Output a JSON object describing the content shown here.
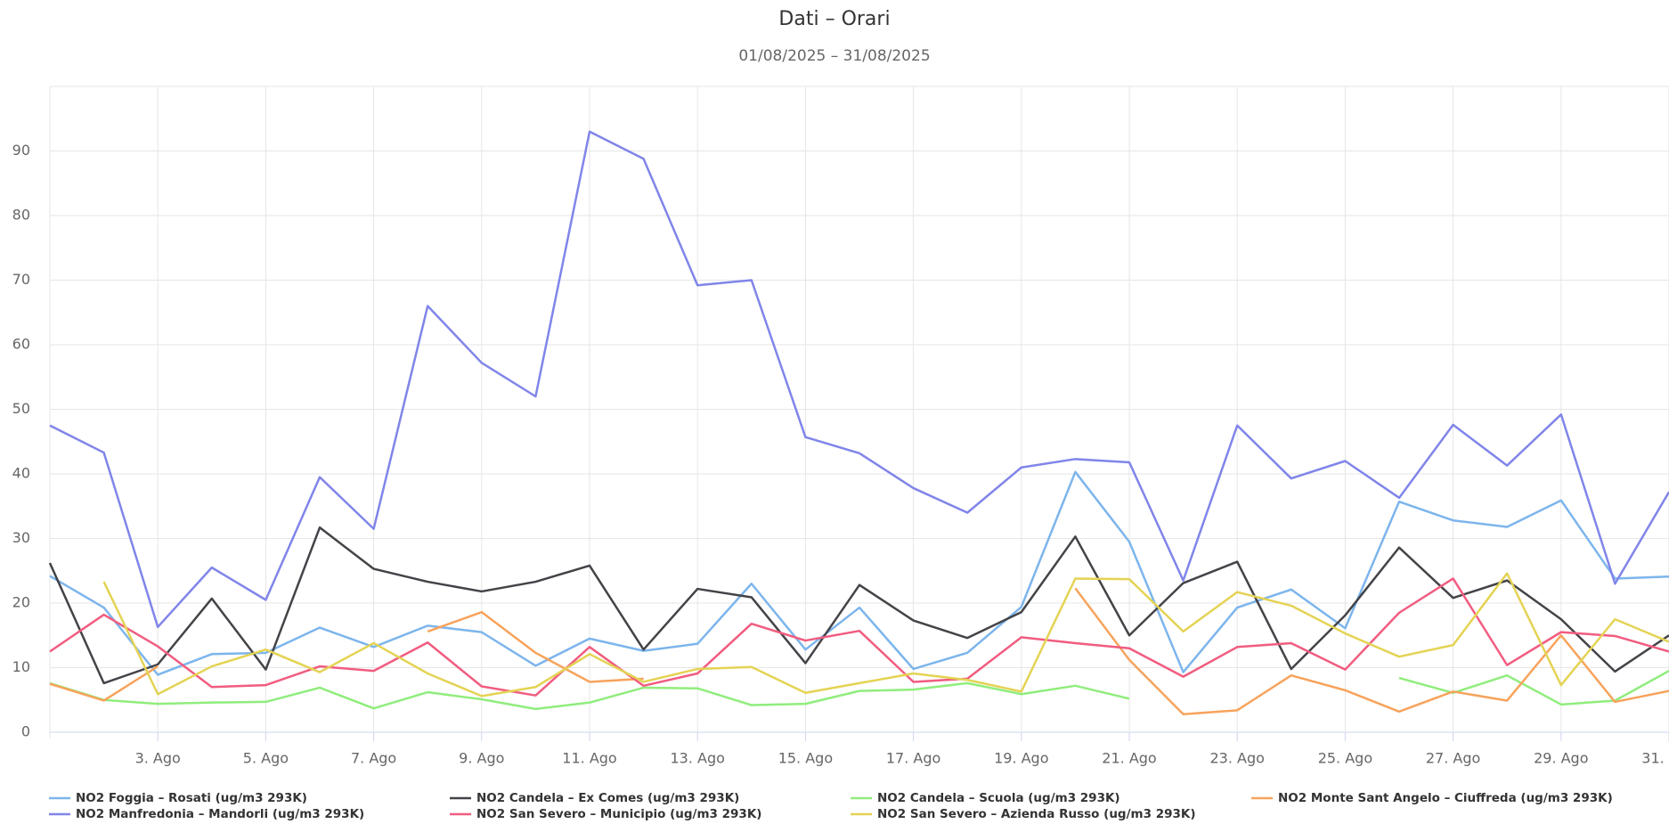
{
  "chart_data": {
    "type": "line",
    "title": "Dati – Orari",
    "subtitle": "01/08/2025 – 31/08/2025",
    "x": [
      1,
      2,
      3,
      4,
      5,
      6,
      7,
      8,
      9,
      10,
      11,
      12,
      13,
      14,
      15,
      16,
      17,
      18,
      19,
      20,
      21,
      22,
      23,
      24,
      25,
      26,
      27,
      28,
      29,
      30,
      31
    ],
    "xlim": [
      1,
      31
    ],
    "xticks": [
      {
        "value": 3,
        "label": "3. Ago"
      },
      {
        "value": 5,
        "label": "5. Ago"
      },
      {
        "value": 7,
        "label": "7. Ago"
      },
      {
        "value": 9,
        "label": "9. Ago"
      },
      {
        "value": 11,
        "label": "11. Ago"
      },
      {
        "value": 13,
        "label": "13. Ago"
      },
      {
        "value": 15,
        "label": "15. Ago"
      },
      {
        "value": 17,
        "label": "17. Ago"
      },
      {
        "value": 19,
        "label": "19. Ago"
      },
      {
        "value": 21,
        "label": "21. Ago"
      },
      {
        "value": 23,
        "label": "23. Ago"
      },
      {
        "value": 25,
        "label": "25. Ago"
      },
      {
        "value": 27,
        "label": "27. Ago"
      },
      {
        "value": 29,
        "label": "29. Ago"
      },
      {
        "value": 31,
        "label": "31. Ago"
      }
    ],
    "ylim": [
      0,
      100
    ],
    "yticks": [
      0,
      10,
      20,
      30,
      40,
      50,
      60,
      70,
      80,
      90
    ],
    "grid": true,
    "legend": "bottom",
    "series": [
      {
        "name": "NO2 Foggia – Rosati (ug/m3 293K)",
        "color": "#7cb5ec",
        "values": [
          24.2,
          19.3,
          8.9,
          12.1,
          12.3,
          16.2,
          13.2,
          16.5,
          15.5,
          10.3,
          14.5,
          12.6,
          13.7,
          23,
          12.8,
          19.3,
          9.8,
          12.3,
          19.4,
          40.3,
          29.5,
          9.3,
          19.3,
          22.1,
          16.1,
          35.7,
          32.8,
          31.8,
          35.9,
          23.8,
          24.1
        ]
      },
      {
        "name": "NO2 Candela – Ex Comes (ug/m3 293K)",
        "color": "#434348",
        "values": [
          26.2,
          7.6,
          10.5,
          20.7,
          9.7,
          31.7,
          25.3,
          23.3,
          21.8,
          23.3,
          25.8,
          12.8,
          22.2,
          20.9,
          10.7,
          22.8,
          17.3,
          14.6,
          18.6,
          30.3,
          15,
          23.1,
          26.4,
          9.8,
          18.1,
          28.6,
          20.8,
          23.5,
          17.5,
          9.4,
          15
        ]
      },
      {
        "name": "NO2 Candela – Scuola (ug/m3 293K)",
        "color": "#90ed7d",
        "values": [
          7.6,
          5,
          4.4,
          4.6,
          4.7,
          6.9,
          3.7,
          6.2,
          5.1,
          3.6,
          4.6,
          6.9,
          6.8,
          4.2,
          4.4,
          6.4,
          6.6,
          7.6,
          5.9,
          7.2,
          5.2,
          null,
          null,
          null,
          null,
          8.4,
          6.1,
          8.8,
          4.3,
          4.9,
          9.5
        ]
      },
      {
        "name": "NO2 Monte Sant Angelo – Ciuffreda (ug/m3 293K)",
        "color": "#f7a35c",
        "values": [
          7.5,
          4.9,
          10.2,
          null,
          null,
          null,
          null,
          15.6,
          18.6,
          12.3,
          7.8,
          8.3,
          null,
          null,
          null,
          null,
          null,
          null,
          null,
          22.3,
          11.2,
          2.8,
          3.4,
          8.8,
          6.5,
          3.2,
          6.3,
          4.9,
          15,
          4.7,
          6.4
        ]
      },
      {
        "name": "NO2 Manfredonia – Mandorli (ug/m3 293K)",
        "color": "#8085e9",
        "values": [
          47.5,
          43.3,
          16.3,
          25.5,
          20.5,
          39.5,
          31.5,
          66,
          57.2,
          52,
          93,
          88.8,
          69.2,
          70,
          45.7,
          43.2,
          37.8,
          34,
          41,
          42.3,
          41.8,
          23.5,
          47.5,
          39.3,
          42,
          36.3,
          47.6,
          41.3,
          49.2,
          23,
          37.2
        ]
      },
      {
        "name": "NO2 San Severo – Municipio (ug/m3 293K)",
        "color": "#f15c80",
        "values": [
          12.5,
          18.2,
          13.3,
          7,
          7.3,
          10.2,
          9.5,
          13.9,
          7.1,
          5.7,
          13.2,
          7.2,
          9.1,
          16.8,
          14.2,
          15.7,
          7.8,
          8.3,
          14.7,
          13.8,
          13,
          8.6,
          13.2,
          13.8,
          9.7,
          18.5,
          23.8,
          10.4,
          15.5,
          14.9,
          12.5
        ]
      },
      {
        "name": "NO2 San Severo – Azienda Russo (ug/m3 293K)",
        "color": "#e4d354",
        "values": [
          null,
          23.3,
          5.9,
          10.2,
          12.8,
          9.3,
          13.8,
          9.1,
          5.6,
          7,
          12.1,
          7.8,
          9.8,
          10.1,
          6.1,
          7.6,
          9.1,
          8.1,
          6.3,
          23.8,
          23.7,
          15.6,
          21.7,
          19.6,
          15.3,
          11.7,
          13.5,
          24.6,
          7.3,
          17.5,
          14
        ]
      }
    ]
  }
}
